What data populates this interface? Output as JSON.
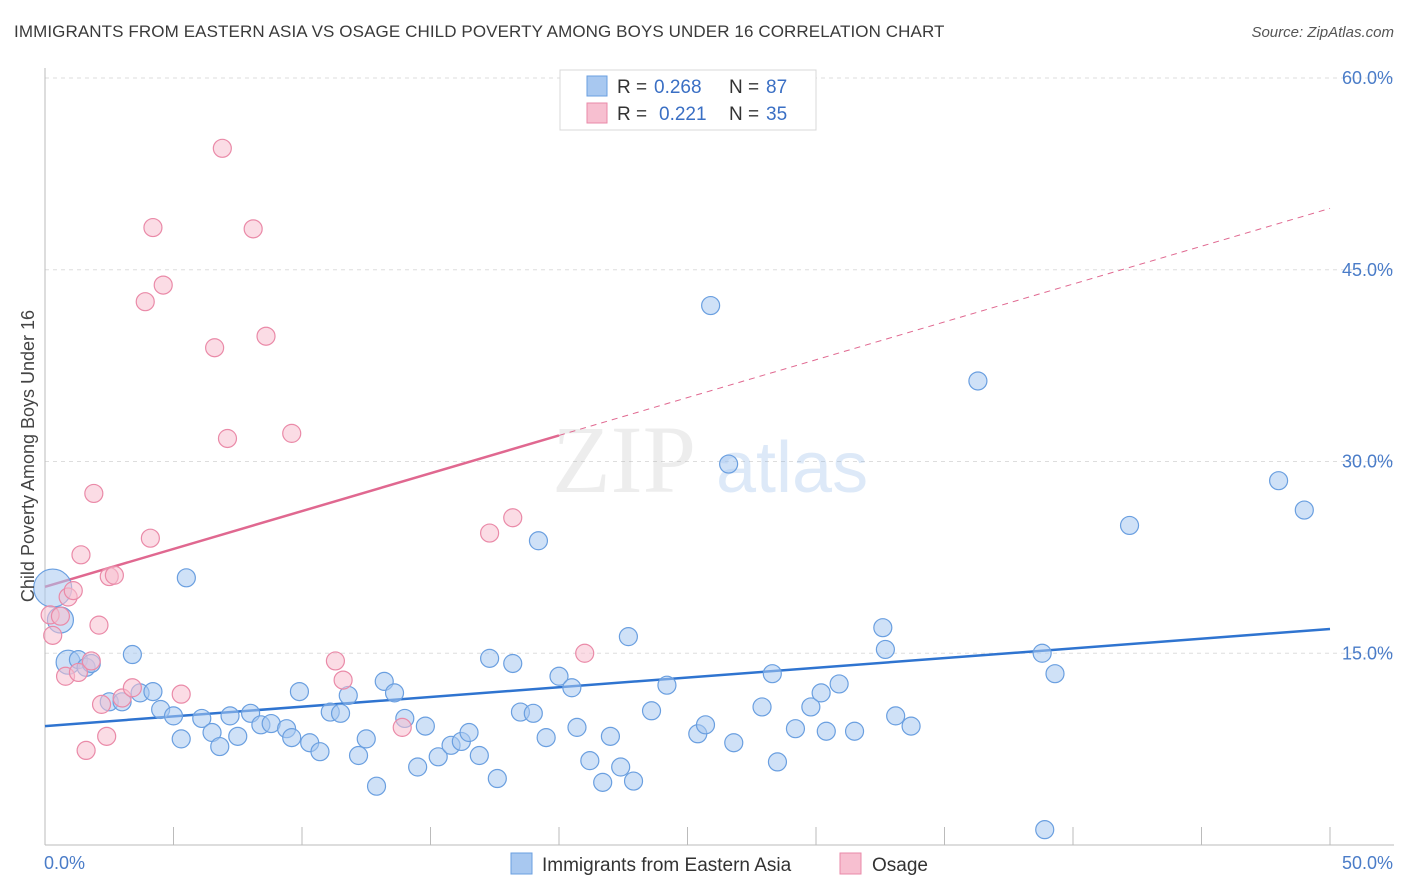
{
  "title": "IMMIGRANTS FROM EASTERN ASIA VS OSAGE CHILD POVERTY AMONG BOYS UNDER 16 CORRELATION CHART",
  "source": "Source: ZipAtlas.com",
  "watermark": {
    "zip": "ZIP",
    "atlas": "atlas"
  },
  "colors": {
    "blue_fill": "#a8c8f0",
    "blue_stroke": "#6a9fe0",
    "blue_line": "#2f74d0",
    "pink_fill": "#f7bfd0",
    "pink_stroke": "#ea8aa8",
    "pink_line": "#e06890",
    "axis_text": "#4a7cc8",
    "grid": "#dddddd"
  },
  "legend": {
    "series": [
      {
        "r_label": "R = ",
        "r_value": "0.268",
        "n_label": "N = ",
        "n_value": "87"
      },
      {
        "r_label": "R = ",
        "r_value": "0.221",
        "n_label": "N = ",
        "n_value": "35"
      }
    ]
  },
  "chart_data": {
    "type": "scatter",
    "title": "IMMIGRANTS FROM EASTERN ASIA VS OSAGE CHILD POVERTY AMONG BOYS UNDER 16 CORRELATION CHART",
    "xlabel": "",
    "ylabel": "Child Poverty Among Boys Under 16",
    "xlim": [
      0,
      50
    ],
    "ylim": [
      0,
      60
    ],
    "x_tick_labels": [
      "0.0%",
      "50.0%"
    ],
    "y_ticks": [
      15,
      30,
      45,
      60
    ],
    "y_tick_labels": [
      "15.0%",
      "30.0%",
      "45.0%",
      "60.0%"
    ],
    "grid": "horizontal dashed",
    "legend_position": "top-center",
    "series": [
      {
        "name": "Immigrants from Eastern Asia",
        "color": "#a8c8f0",
        "R": 0.268,
        "N": 87,
        "trend": {
          "x": [
            0,
            50
          ],
          "y": [
            9.3,
            16.9
          ],
          "style": "solid"
        },
        "points": [
          [
            0.3,
            20.1
          ],
          [
            0.6,
            17.6
          ],
          [
            0.9,
            14.3
          ],
          [
            1.3,
            14.5
          ],
          [
            1.6,
            13.9
          ],
          [
            1.8,
            14.2
          ],
          [
            2.5,
            11.2
          ],
          [
            3.0,
            11.2
          ],
          [
            3.4,
            14.9
          ],
          [
            3.7,
            11.9
          ],
          [
            4.2,
            12.0
          ],
          [
            4.5,
            10.6
          ],
          [
            5.0,
            10.1
          ],
          [
            5.3,
            8.3
          ],
          [
            5.5,
            20.9
          ],
          [
            6.1,
            9.9
          ],
          [
            6.5,
            8.8
          ],
          [
            6.8,
            7.7
          ],
          [
            7.2,
            10.1
          ],
          [
            7.5,
            8.5
          ],
          [
            8.0,
            10.3
          ],
          [
            8.4,
            9.4
          ],
          [
            8.8,
            9.5
          ],
          [
            9.4,
            9.1
          ],
          [
            9.6,
            8.4
          ],
          [
            9.9,
            12.0
          ],
          [
            10.3,
            8.0
          ],
          [
            10.7,
            7.3
          ],
          [
            11.1,
            10.4
          ],
          [
            11.5,
            10.3
          ],
          [
            11.8,
            11.7
          ],
          [
            12.2,
            7.0
          ],
          [
            12.5,
            8.3
          ],
          [
            12.9,
            4.6
          ],
          [
            13.2,
            12.8
          ],
          [
            13.6,
            11.9
          ],
          [
            14.0,
            9.9
          ],
          [
            14.5,
            6.1
          ],
          [
            14.8,
            9.3
          ],
          [
            15.3,
            6.9
          ],
          [
            15.8,
            7.8
          ],
          [
            16.2,
            8.1
          ],
          [
            16.5,
            8.8
          ],
          [
            16.9,
            7.0
          ],
          [
            17.3,
            14.6
          ],
          [
            17.6,
            5.2
          ],
          [
            18.2,
            14.2
          ],
          [
            18.5,
            10.4
          ],
          [
            19.0,
            10.3
          ],
          [
            19.2,
            23.8
          ],
          [
            19.5,
            8.4
          ],
          [
            20.0,
            13.2
          ],
          [
            20.5,
            12.3
          ],
          [
            20.7,
            9.2
          ],
          [
            21.2,
            6.6
          ],
          [
            21.7,
            4.9
          ],
          [
            22.0,
            8.5
          ],
          [
            22.4,
            6.1
          ],
          [
            22.7,
            16.3
          ],
          [
            22.9,
            5.0
          ],
          [
            23.6,
            10.5
          ],
          [
            24.2,
            12.5
          ],
          [
            25.4,
            8.7
          ],
          [
            25.7,
            9.4
          ],
          [
            25.9,
            42.2
          ],
          [
            26.6,
            29.8
          ],
          [
            26.8,
            8.0
          ],
          [
            27.9,
            10.8
          ],
          [
            28.3,
            13.4
          ],
          [
            28.5,
            6.5
          ],
          [
            29.2,
            9.1
          ],
          [
            29.8,
            10.8
          ],
          [
            30.2,
            11.9
          ],
          [
            30.4,
            8.9
          ],
          [
            30.9,
            12.6
          ],
          [
            31.5,
            8.9
          ],
          [
            32.6,
            17.0
          ],
          [
            32.7,
            15.3
          ],
          [
            33.1,
            10.1
          ],
          [
            33.7,
            9.3
          ],
          [
            36.3,
            36.3
          ],
          [
            38.8,
            15.0
          ],
          [
            38.9,
            1.2
          ],
          [
            39.3,
            13.4
          ],
          [
            42.2,
            25.0
          ],
          [
            48.0,
            28.5
          ],
          [
            49.0,
            26.2
          ]
        ]
      },
      {
        "name": "Osage",
        "color": "#f7bfd0",
        "R": 0.221,
        "N": 35,
        "trend": {
          "x": [
            0,
            50
          ],
          "y": [
            20.2,
            49.8
          ],
          "solid_until_x": 20,
          "style": "solid then dashed"
        },
        "points": [
          [
            0.2,
            18.0
          ],
          [
            0.3,
            16.4
          ],
          [
            0.6,
            17.9
          ],
          [
            0.8,
            13.2
          ],
          [
            0.9,
            19.4
          ],
          [
            1.1,
            19.9
          ],
          [
            1.3,
            13.5
          ],
          [
            1.4,
            22.7
          ],
          [
            1.6,
            7.4
          ],
          [
            1.8,
            14.4
          ],
          [
            1.9,
            27.5
          ],
          [
            2.1,
            17.2
          ],
          [
            2.2,
            11.0
          ],
          [
            2.4,
            8.5
          ],
          [
            2.5,
            21.0
          ],
          [
            2.7,
            21.1
          ],
          [
            3.0,
            11.5
          ],
          [
            3.4,
            12.3
          ],
          [
            3.9,
            42.5
          ],
          [
            4.1,
            24.0
          ],
          [
            4.2,
            48.3
          ],
          [
            4.6,
            43.8
          ],
          [
            5.3,
            11.8
          ],
          [
            6.6,
            38.9
          ],
          [
            6.9,
            54.5
          ],
          [
            7.1,
            31.8
          ],
          [
            8.1,
            48.2
          ],
          [
            8.6,
            39.8
          ],
          [
            9.6,
            32.2
          ],
          [
            11.3,
            14.4
          ],
          [
            11.6,
            12.9
          ],
          [
            13.9,
            9.2
          ],
          [
            17.3,
            24.4
          ],
          [
            18.2,
            25.6
          ],
          [
            21.0,
            15.0
          ]
        ]
      }
    ]
  },
  "bottom_legend": [
    {
      "label": "Immigrants from Eastern Asia"
    },
    {
      "label": "Osage"
    }
  ]
}
